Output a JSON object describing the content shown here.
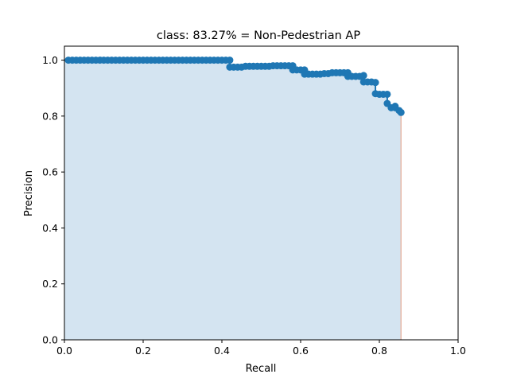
{
  "chart_data": {
    "type": "area",
    "title": "class: 83.27% = Non-Pedestrian AP",
    "xlabel": "Recall",
    "ylabel": "Precision",
    "xlim": [
      0.0,
      1.0
    ],
    "ylim": [
      0.0,
      1.05
    ],
    "xticks": [
      "0.0",
      "0.2",
      "0.4",
      "0.6",
      "0.8",
      "1.0"
    ],
    "yticks": [
      "0.0",
      "0.2",
      "0.4",
      "0.6",
      "0.8",
      "1.0"
    ],
    "grid": false,
    "legend": "none",
    "colors": {
      "marker": "#1f77b4",
      "fill": "#d4e4f1",
      "edge": "#e8b9a8"
    },
    "series": [
      {
        "x": [
          0.01,
          0.02,
          0.03,
          0.04,
          0.05,
          0.06,
          0.07,
          0.08,
          0.09,
          0.1,
          0.11,
          0.12,
          0.13,
          0.14,
          0.15,
          0.16,
          0.17,
          0.18,
          0.19,
          0.2,
          0.21,
          0.22,
          0.23,
          0.24,
          0.25,
          0.26,
          0.27,
          0.28,
          0.29,
          0.3,
          0.31,
          0.32,
          0.33,
          0.34,
          0.35,
          0.36,
          0.37,
          0.38,
          0.39,
          0.4,
          0.41,
          0.42,
          0.42,
          0.43,
          0.44,
          0.45,
          0.46,
          0.47,
          0.48,
          0.49,
          0.5,
          0.51,
          0.52,
          0.53,
          0.54,
          0.55,
          0.56,
          0.57,
          0.58,
          0.58,
          0.59,
          0.6,
          0.61,
          0.61,
          0.62,
          0.63,
          0.64,
          0.65,
          0.66,
          0.67,
          0.68,
          0.69,
          0.7,
          0.71,
          0.72,
          0.72,
          0.73,
          0.74,
          0.75,
          0.76,
          0.76,
          0.77,
          0.78,
          0.79,
          0.79,
          0.8,
          0.81,
          0.82,
          0.82,
          0.83,
          0.84,
          0.84,
          0.85,
          0.855
        ],
        "y": [
          1.0,
          1.0,
          1.0,
          1.0,
          1.0,
          1.0,
          1.0,
          1.0,
          1.0,
          1.0,
          1.0,
          1.0,
          1.0,
          1.0,
          1.0,
          1.0,
          1.0,
          1.0,
          1.0,
          1.0,
          1.0,
          1.0,
          1.0,
          1.0,
          1.0,
          1.0,
          1.0,
          1.0,
          1.0,
          1.0,
          1.0,
          1.0,
          1.0,
          1.0,
          1.0,
          1.0,
          1.0,
          1.0,
          1.0,
          1.0,
          1.0,
          1.0,
          0.975,
          0.975,
          0.975,
          0.975,
          0.978,
          0.978,
          0.978,
          0.978,
          0.978,
          0.978,
          0.978,
          0.98,
          0.98,
          0.98,
          0.98,
          0.98,
          0.98,
          0.965,
          0.965,
          0.965,
          0.965,
          0.95,
          0.95,
          0.95,
          0.95,
          0.95,
          0.952,
          0.952,
          0.955,
          0.955,
          0.955,
          0.955,
          0.955,
          0.942,
          0.942,
          0.942,
          0.942,
          0.945,
          0.922,
          0.922,
          0.922,
          0.92,
          0.88,
          0.878,
          0.878,
          0.878,
          0.845,
          0.83,
          0.83,
          0.835,
          0.82,
          0.813
        ]
      }
    ]
  }
}
